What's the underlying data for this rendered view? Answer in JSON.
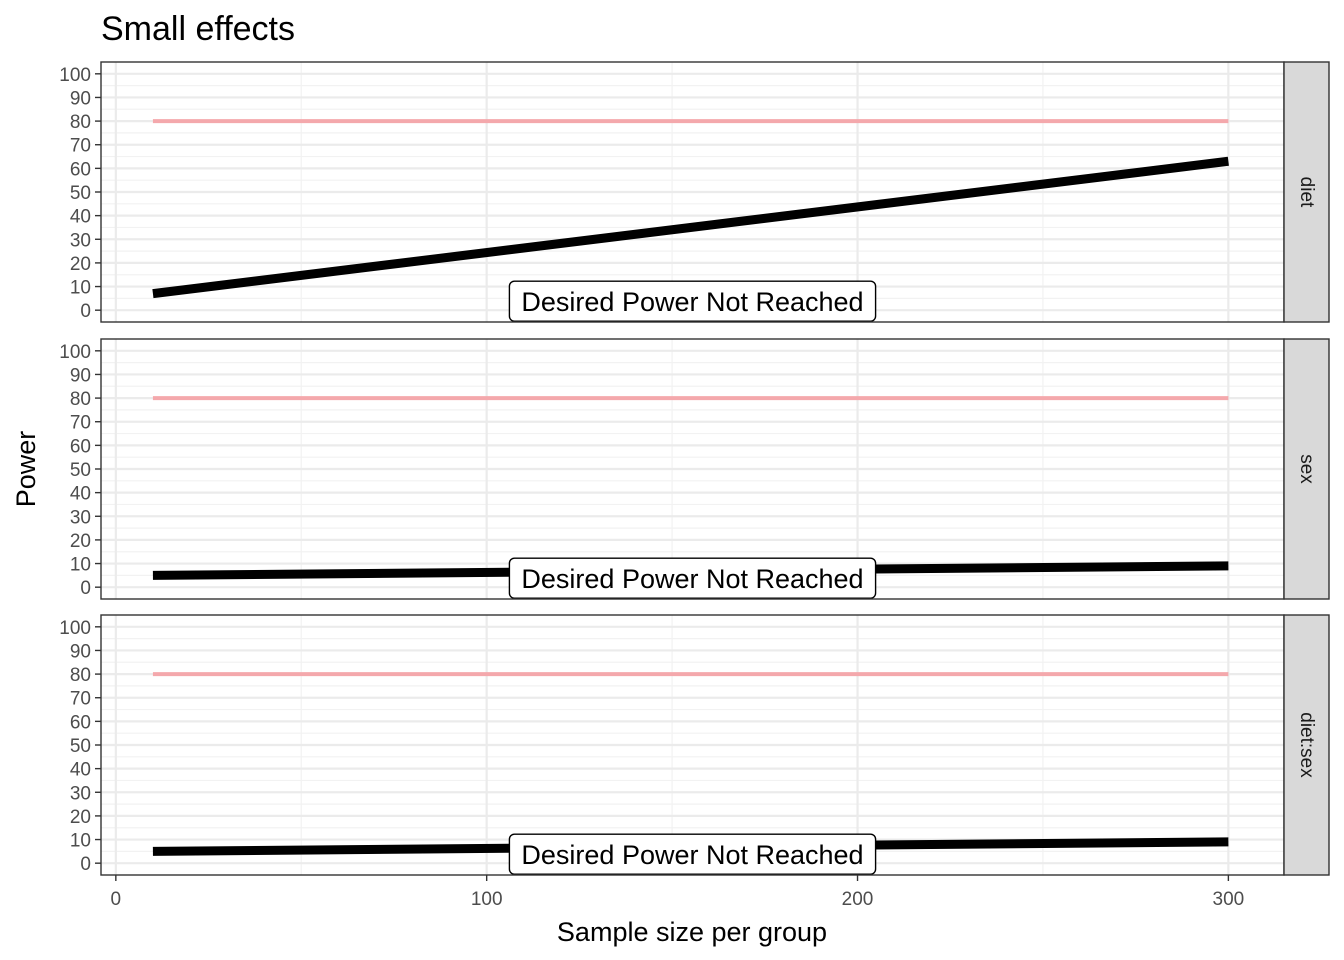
{
  "chart_data": {
    "type": "line",
    "title": "Small effects",
    "xlabel": "Sample size per group",
    "ylabel": "Power",
    "xlim": [
      -4,
      315
    ],
    "ylim": [
      -5,
      105
    ],
    "x_ticks": [
      0,
      100,
      200,
      300
    ],
    "y_ticks": [
      0,
      10,
      20,
      30,
      40,
      50,
      60,
      70,
      80,
      90,
      100
    ],
    "grid": true,
    "facets": [
      "diet",
      "sex",
      "diet:sex"
    ],
    "target_power": 80,
    "colors": {
      "power_line": "#000000",
      "target_line": "#f4a8ac",
      "panel_border": "#333333",
      "grid": "#ebebeb",
      "strip_fill": "#d9d9d9"
    },
    "panels": [
      {
        "facet": "diet",
        "x": [
          10,
          300
        ],
        "power": [
          7,
          63
        ],
        "target": [
          80,
          80
        ],
        "annotation": "Desired Power Not Reached"
      },
      {
        "facet": "sex",
        "x": [
          10,
          300
        ],
        "power": [
          5,
          9
        ],
        "target": [
          80,
          80
        ],
        "annotation": "Desired Power Not Reached"
      },
      {
        "facet": "diet:sex",
        "x": [
          10,
          300
        ],
        "power": [
          5,
          9
        ],
        "target": [
          80,
          80
        ],
        "annotation": "Desired Power Not Reached"
      }
    ]
  }
}
